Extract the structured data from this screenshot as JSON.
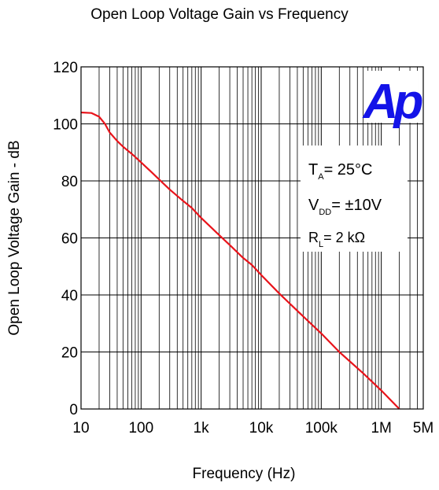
{
  "chart_data": {
    "type": "line",
    "title": "Open Loop Voltage Gain vs Frequency",
    "xlabel": "Frequency  (Hz)",
    "ylabel": "Open Loop Voltage Gain - dB",
    "x_scale": "log",
    "xlim": [
      10,
      5000000
    ],
    "ylim": [
      0,
      120
    ],
    "grid": true,
    "x_ticks": [
      {
        "value": 10,
        "label": "10"
      },
      {
        "value": 100,
        "label": "100"
      },
      {
        "value": 1000,
        "label": "1k"
      },
      {
        "value": 10000,
        "label": "10k"
      },
      {
        "value": 100000,
        "label": "100k"
      },
      {
        "value": 1000000,
        "label": "1M"
      },
      {
        "value": 5000000,
        "label": "5M"
      }
    ],
    "y_ticks": [
      {
        "value": 0,
        "label": "0"
      },
      {
        "value": 20,
        "label": "20"
      },
      {
        "value": 40,
        "label": "40"
      },
      {
        "value": 60,
        "label": "60"
      },
      {
        "value": 80,
        "label": "80"
      },
      {
        "value": 100,
        "label": "100"
      },
      {
        "value": 120,
        "label": "120"
      }
    ],
    "series": [
      {
        "color": "#e8141b",
        "x": [
          10,
          15,
          20,
          25,
          30,
          40,
          50,
          70,
          100,
          150,
          200,
          300,
          500,
          700,
          1000,
          1500,
          2000,
          3000,
          5000,
          7000,
          10000,
          20000,
          50000,
          100000,
          200000,
          500000,
          1000000,
          2000000
        ],
        "y": [
          104,
          103.8,
          102.5,
          100,
          97,
          94,
          92,
          89.5,
          86.5,
          83,
          80.5,
          77,
          73,
          70.5,
          67,
          63.5,
          61,
          57.5,
          53,
          50.5,
          47,
          40.5,
          32.5,
          26.5,
          20,
          12.5,
          6.5,
          0
        ]
      }
    ],
    "annotations": {
      "logo": "Ap",
      "conditions": [
        {
          "main": "T",
          "sub": "A",
          "rest": "= 25°C"
        },
        {
          "main": "V",
          "sub": "DD",
          "rest": "= ±10V"
        },
        {
          "main": "R",
          "sub": "L",
          "rest": "= 2 kΩ"
        }
      ]
    }
  }
}
